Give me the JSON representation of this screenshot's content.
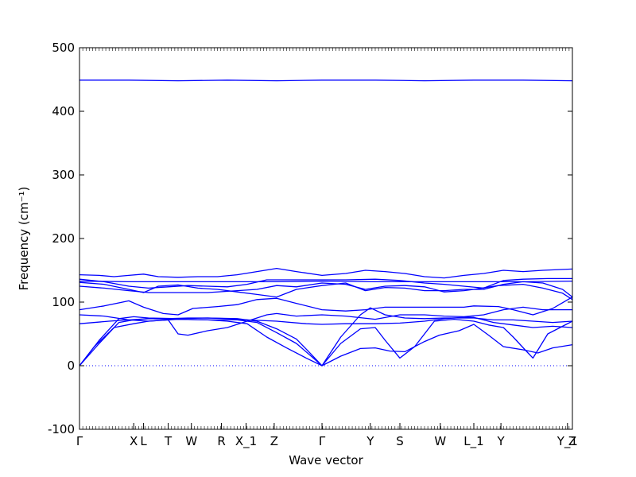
{
  "chart_data": {
    "type": "line",
    "title": "",
    "xlabel": "Wave vector",
    "ylabel": "Frequency (cm⁻¹)",
    "ylim": [
      -100,
      500
    ],
    "yticks": [
      -100,
      0,
      100,
      200,
      300,
      400,
      500
    ],
    "grid": false,
    "line_color": "#0000ff",
    "zero_line_color": "#0000ff",
    "xticks": [
      {
        "label": "Γ",
        "pos": 0.0
      },
      {
        "label": "X",
        "pos": 0.11
      },
      {
        "label": "L",
        "pos": 0.13
      },
      {
        "label": "T",
        "pos": 0.18
      },
      {
        "label": "W",
        "pos": 0.227
      },
      {
        "label": "R",
        "pos": 0.288
      },
      {
        "label": "X_1",
        "pos": 0.338
      },
      {
        "label": "Z",
        "pos": 0.395
      },
      {
        "label": "Γ",
        "pos": 0.492
      },
      {
        "label": "Y",
        "pos": 0.59
      },
      {
        "label": "S",
        "pos": 0.65
      },
      {
        "label": "W",
        "pos": 0.732
      },
      {
        "label": "L_1",
        "pos": 0.8
      },
      {
        "label": "Y",
        "pos": 0.855
      },
      {
        "label": "Y_1",
        "pos": 0.99
      },
      {
        "label": "Z",
        "pos": 1.0
      }
    ],
    "series": [
      {
        "points": [
          [
            0,
            0
          ],
          [
            0.03,
            30
          ],
          [
            0.07,
            60
          ],
          [
            0.11,
            66
          ],
          [
            0.14,
            70
          ],
          [
            0.2,
            73
          ],
          [
            0.26,
            72
          ],
          [
            0.3,
            70
          ],
          [
            0.34,
            66
          ],
          [
            0.38,
            45
          ],
          [
            0.42,
            28
          ],
          [
            0.46,
            12
          ],
          [
            0.492,
            0
          ],
          [
            0.53,
            15
          ],
          [
            0.57,
            27
          ],
          [
            0.6,
            28
          ],
          [
            0.63,
            23
          ],
          [
            0.66,
            22
          ],
          [
            0.7,
            38
          ],
          [
            0.73,
            48
          ],
          [
            0.77,
            55
          ],
          [
            0.8,
            65
          ],
          [
            0.83,
            48
          ],
          [
            0.86,
            30
          ],
          [
            0.9,
            25
          ],
          [
            0.93,
            20
          ],
          [
            0.96,
            28
          ],
          [
            1.0,
            33
          ]
        ]
      },
      {
        "points": [
          [
            0,
            0
          ],
          [
            0.04,
            35
          ],
          [
            0.08,
            68
          ],
          [
            0.11,
            72
          ],
          [
            0.14,
            74
          ],
          [
            0.2,
            73
          ],
          [
            0.26,
            72
          ],
          [
            0.32,
            72
          ],
          [
            0.36,
            68
          ],
          [
            0.4,
            52
          ],
          [
            0.44,
            35
          ],
          [
            0.47,
            15
          ],
          [
            0.492,
            0
          ],
          [
            0.53,
            35
          ],
          [
            0.57,
            58
          ],
          [
            0.6,
            60
          ],
          [
            0.62,
            40
          ],
          [
            0.65,
            12
          ],
          [
            0.68,
            30
          ],
          [
            0.72,
            70
          ],
          [
            0.76,
            73
          ],
          [
            0.8,
            70
          ],
          [
            0.83,
            64
          ],
          [
            0.86,
            60
          ],
          [
            0.88,
            45
          ],
          [
            0.91,
            20
          ],
          [
            0.92,
            12
          ],
          [
            0.95,
            50
          ],
          [
            1.0,
            70
          ]
        ]
      },
      {
        "points": [
          [
            0,
            0
          ],
          [
            0.04,
            40
          ],
          [
            0.08,
            74
          ],
          [
            0.11,
            77
          ],
          [
            0.14,
            75
          ],
          [
            0.2,
            74
          ],
          [
            0.26,
            75
          ],
          [
            0.32,
            74
          ],
          [
            0.36,
            70
          ],
          [
            0.4,
            58
          ],
          [
            0.44,
            42
          ],
          [
            0.47,
            18
          ],
          [
            0.492,
            0
          ],
          [
            0.53,
            45
          ],
          [
            0.57,
            80
          ],
          [
            0.59,
            91
          ],
          [
            0.62,
            80
          ],
          [
            0.66,
            75
          ],
          [
            0.7,
            74
          ],
          [
            0.74,
            75
          ],
          [
            0.8,
            75
          ],
          [
            0.84,
            72
          ],
          [
            0.88,
            72
          ],
          [
            0.92,
            70
          ],
          [
            0.96,
            68
          ],
          [
            1.0,
            70
          ]
        ]
      },
      {
        "points": [
          [
            0,
            66
          ],
          [
            0.06,
            70
          ],
          [
            0.1,
            72
          ],
          [
            0.14,
            74
          ],
          [
            0.18,
            74
          ],
          [
            0.22,
            75
          ],
          [
            0.26,
            75
          ],
          [
            0.3,
            74
          ],
          [
            0.34,
            72
          ],
          [
            0.4,
            70
          ],
          [
            0.46,
            66
          ],
          [
            0.492,
            65
          ],
          [
            0.54,
            66
          ],
          [
            0.6,
            66
          ],
          [
            0.65,
            67
          ],
          [
            0.7,
            70
          ],
          [
            0.74,
            74
          ],
          [
            0.78,
            76
          ],
          [
            0.8,
            76
          ],
          [
            0.84,
            68
          ],
          [
            0.88,
            64
          ],
          [
            0.92,
            60
          ],
          [
            0.96,
            62
          ],
          [
            1.0,
            60
          ]
        ]
      },
      {
        "points": [
          [
            0,
            80
          ],
          [
            0.05,
            78
          ],
          [
            0.1,
            72
          ],
          [
            0.14,
            70
          ],
          [
            0.18,
            72
          ],
          [
            0.2,
            50
          ],
          [
            0.22,
            48
          ],
          [
            0.26,
            55
          ],
          [
            0.3,
            60
          ],
          [
            0.34,
            70
          ],
          [
            0.38,
            80
          ],
          [
            0.4,
            82
          ],
          [
            0.44,
            78
          ],
          [
            0.492,
            80
          ],
          [
            0.54,
            78
          ],
          [
            0.6,
            73
          ],
          [
            0.65,
            80
          ],
          [
            0.7,
            80
          ],
          [
            0.74,
            78
          ],
          [
            0.78,
            77
          ],
          [
            0.82,
            80
          ],
          [
            0.86,
            88
          ],
          [
            0.9,
            92
          ],
          [
            0.94,
            88
          ],
          [
            0.98,
            88
          ],
          [
            1.0,
            88
          ]
        ]
      },
      {
        "points": [
          [
            0,
            88
          ],
          [
            0.05,
            94
          ],
          [
            0.1,
            102
          ],
          [
            0.13,
            92
          ],
          [
            0.17,
            82
          ],
          [
            0.2,
            80
          ],
          [
            0.23,
            90
          ],
          [
            0.28,
            93
          ],
          [
            0.32,
            96
          ],
          [
            0.36,
            104
          ],
          [
            0.4,
            106
          ],
          [
            0.44,
            98
          ],
          [
            0.492,
            88
          ],
          [
            0.54,
            86
          ],
          [
            0.58,
            88
          ],
          [
            0.62,
            92
          ],
          [
            0.68,
            92
          ],
          [
            0.74,
            92
          ],
          [
            0.78,
            92
          ],
          [
            0.8,
            94
          ],
          [
            0.85,
            93
          ],
          [
            0.88,
            88
          ],
          [
            0.92,
            80
          ],
          [
            0.96,
            90
          ],
          [
            1.0,
            108
          ]
        ]
      },
      {
        "points": [
          [
            0,
            125
          ],
          [
            0.05,
            122
          ],
          [
            0.1,
            118
          ],
          [
            0.14,
            115
          ],
          [
            0.2,
            115
          ],
          [
            0.26,
            115
          ],
          [
            0.32,
            118
          ],
          [
            0.36,
            120
          ],
          [
            0.4,
            126
          ],
          [
            0.44,
            124
          ],
          [
            0.492,
            130
          ],
          [
            0.54,
            128
          ],
          [
            0.58,
            120
          ],
          [
            0.62,
            125
          ],
          [
            0.66,
            126
          ],
          [
            0.7,
            124
          ],
          [
            0.74,
            116
          ],
          [
            0.78,
            118
          ],
          [
            0.8,
            120
          ],
          [
            0.85,
            126
          ],
          [
            0.9,
            128
          ],
          [
            0.94,
            122
          ],
          [
            0.98,
            114
          ],
          [
            1.0,
            104
          ]
        ]
      },
      {
        "points": [
          [
            0,
            131
          ],
          [
            0.05,
            128
          ],
          [
            0.1,
            120
          ],
          [
            0.13,
            115
          ],
          [
            0.16,
            125
          ],
          [
            0.2,
            127
          ],
          [
            0.24,
            122
          ],
          [
            0.28,
            120
          ],
          [
            0.32,
            116
          ],
          [
            0.36,
            112
          ],
          [
            0.4,
            108
          ],
          [
            0.44,
            120
          ],
          [
            0.492,
            126
          ],
          [
            0.54,
            130
          ],
          [
            0.58,
            118
          ],
          [
            0.62,
            123
          ],
          [
            0.66,
            122
          ],
          [
            0.7,
            118
          ],
          [
            0.74,
            118
          ],
          [
            0.78,
            120
          ],
          [
            0.82,
            120
          ],
          [
            0.86,
            128
          ],
          [
            0.9,
            132
          ],
          [
            0.94,
            130
          ],
          [
            0.98,
            120
          ],
          [
            1.0,
            108
          ]
        ]
      },
      {
        "points": [
          [
            0,
            133
          ],
          [
            0.1,
            132
          ],
          [
            0.2,
            132
          ],
          [
            0.3,
            132
          ],
          [
            0.4,
            132
          ],
          [
            0.492,
            133
          ],
          [
            0.6,
            132
          ],
          [
            0.7,
            132
          ],
          [
            0.8,
            132
          ],
          [
            0.9,
            132
          ],
          [
            1.0,
            133
          ]
        ]
      },
      {
        "points": [
          [
            0,
            136
          ],
          [
            0.05,
            132
          ],
          [
            0.1,
            125
          ],
          [
            0.14,
            122
          ],
          [
            0.18,
            124
          ],
          [
            0.22,
            126
          ],
          [
            0.26,
            125
          ],
          [
            0.3,
            124
          ],
          [
            0.34,
            128
          ],
          [
            0.38,
            135
          ],
          [
            0.42,
            135
          ],
          [
            0.46,
            135
          ],
          [
            0.492,
            135
          ],
          [
            0.54,
            135
          ],
          [
            0.6,
            136
          ],
          [
            0.65,
            134
          ],
          [
            0.7,
            130
          ],
          [
            0.74,
            128
          ],
          [
            0.78,
            125
          ],
          [
            0.82,
            122
          ],
          [
            0.86,
            134
          ],
          [
            0.9,
            136
          ],
          [
            0.95,
            137
          ],
          [
            1.0,
            137
          ]
        ]
      },
      {
        "points": [
          [
            0,
            143
          ],
          [
            0.04,
            142
          ],
          [
            0.07,
            140
          ],
          [
            0.1,
            142
          ],
          [
            0.13,
            144
          ],
          [
            0.16,
            140
          ],
          [
            0.2,
            139
          ],
          [
            0.24,
            140
          ],
          [
            0.28,
            140
          ],
          [
            0.32,
            143
          ],
          [
            0.36,
            148
          ],
          [
            0.4,
            153
          ],
          [
            0.44,
            148
          ],
          [
            0.492,
            142
          ],
          [
            0.54,
            145
          ],
          [
            0.58,
            150
          ],
          [
            0.62,
            148
          ],
          [
            0.66,
            145
          ],
          [
            0.7,
            140
          ],
          [
            0.74,
            138
          ],
          [
            0.78,
            142
          ],
          [
            0.82,
            145
          ],
          [
            0.86,
            150
          ],
          [
            0.9,
            148
          ],
          [
            0.94,
            150
          ],
          [
            1.0,
            152
          ]
        ]
      },
      {
        "points": [
          [
            0,
            449
          ],
          [
            0.1,
            449
          ],
          [
            0.2,
            448
          ],
          [
            0.3,
            449
          ],
          [
            0.4,
            448
          ],
          [
            0.492,
            449
          ],
          [
            0.6,
            449
          ],
          [
            0.7,
            448
          ],
          [
            0.8,
            449
          ],
          [
            0.9,
            449
          ],
          [
            1.0,
            448
          ]
        ]
      }
    ]
  }
}
